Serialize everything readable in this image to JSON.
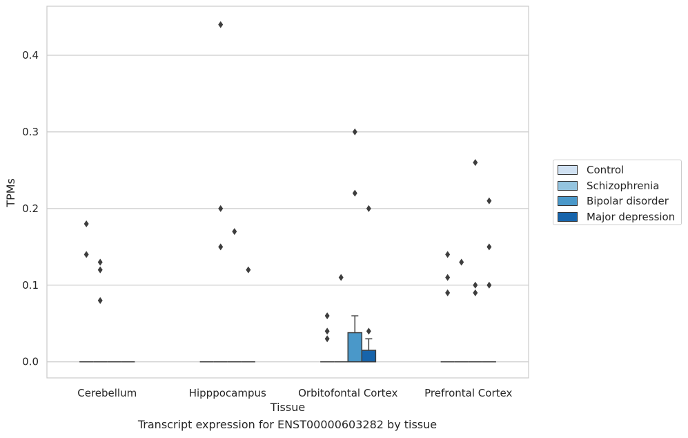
{
  "chart_data": {
    "type": "box",
    "title": "",
    "xlabel": "Tissue",
    "ylabel": "TPMs",
    "caption": "Transcript expression for ENST00000603282 by tissue",
    "categories": [
      "Cerebellum",
      "Hipppocampus",
      "Orbitofontal Cortex",
      "Prefrontal Cortex"
    ],
    "ylim": [
      -0.021,
      0.464
    ],
    "yticks": [
      "0.0",
      "0.1",
      "0.2",
      "0.3",
      "0.4"
    ],
    "grid": "horizontal",
    "legend_position": "right",
    "series": [
      {
        "name": "Control",
        "color": "#d0e1f2",
        "boxes": [
          {
            "q1": 0,
            "median": 0,
            "q3": 0,
            "whisker_high": 0,
            "outliers": [
              0.18,
              0.14
            ]
          },
          {
            "q1": 0,
            "median": 0,
            "q3": 0,
            "whisker_high": 0,
            "outliers": []
          },
          {
            "q1": 0,
            "median": 0,
            "q3": 0,
            "whisker_high": 0,
            "outliers": [
              0.06,
              0.04,
              0.03
            ]
          },
          {
            "q1": 0,
            "median": 0,
            "q3": 0,
            "whisker_high": 0,
            "outliers": [
              0.14,
              0.11,
              0.09
            ]
          }
        ]
      },
      {
        "name": "Schizophrenia",
        "color": "#94c4df",
        "boxes": [
          {
            "q1": 0,
            "median": 0,
            "q3": 0,
            "whisker_high": 0,
            "outliers": [
              0.13,
              0.12,
              0.08
            ]
          },
          {
            "q1": 0,
            "median": 0,
            "q3": 0,
            "whisker_high": 0,
            "outliers": [
              0.44,
              0.2,
              0.15
            ]
          },
          {
            "q1": 0,
            "median": 0,
            "q3": 0,
            "whisker_high": 0,
            "outliers": [
              0.11
            ]
          },
          {
            "q1": 0,
            "median": 0,
            "q3": 0,
            "whisker_high": 0,
            "outliers": [
              0.13
            ]
          }
        ]
      },
      {
        "name": "Bipolar disorder",
        "color": "#4a98c9",
        "boxes": [
          {
            "q1": 0,
            "median": 0,
            "q3": 0,
            "whisker_high": 0,
            "outliers": []
          },
          {
            "q1": 0,
            "median": 0,
            "q3": 0,
            "whisker_high": 0,
            "outliers": [
              0.17
            ]
          },
          {
            "q1": 0,
            "median": 0,
            "q3": 0.038,
            "whisker_high": 0.06,
            "outliers": [
              0.3,
              0.22
            ]
          },
          {
            "q1": 0,
            "median": 0,
            "q3": 0,
            "whisker_high": 0,
            "outliers": [
              0.26,
              0.1,
              0.09
            ]
          }
        ]
      },
      {
        "name": "Major depression",
        "color": "#1764ab",
        "boxes": [
          {
            "q1": 0,
            "median": 0,
            "q3": 0,
            "whisker_high": 0,
            "outliers": []
          },
          {
            "q1": 0,
            "median": 0,
            "q3": 0,
            "whisker_high": 0,
            "outliers": [
              0.12
            ]
          },
          {
            "q1": 0,
            "median": 0,
            "q3": 0.015,
            "whisker_high": 0.03,
            "outliers": [
              0.2,
              0.04
            ]
          },
          {
            "q1": 0,
            "median": 0,
            "q3": 0,
            "whisker_high": 0,
            "outliers": [
              0.21,
              0.15,
              0.1
            ]
          }
        ]
      }
    ]
  }
}
